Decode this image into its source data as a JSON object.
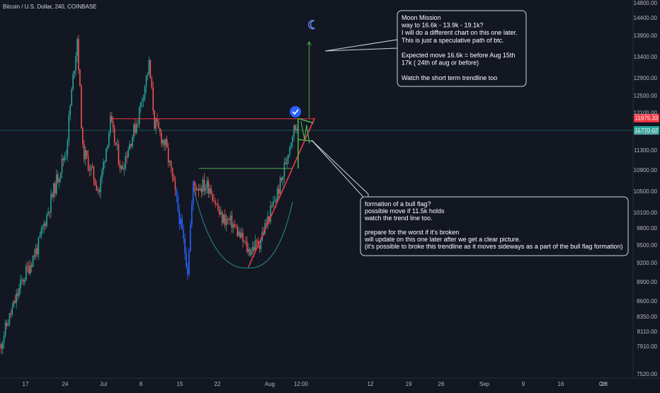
{
  "header": {
    "title": "Bitcoin / U.S. Dollar, 240, COINBASE"
  },
  "colors": {
    "background": "#131722",
    "up": "#26a69a",
    "down": "#ef5350",
    "resistance": "#f23645",
    "trendline": "#f23645",
    "flag": "#4caf50",
    "support_blue": "#2962ff",
    "annotation_border": "#d1d4dc"
  },
  "chart_data": {
    "type": "candlestick",
    "title": "Bitcoin / U.S. Dollar, 240, COINBASE",
    "xlabel": "",
    "ylabel": "",
    "ylim": [
      7400,
      14850
    ],
    "grid": false,
    "y_ticks": [
      7520,
      7910,
      8110,
      8350,
      8600,
      8900,
      9200,
      9500,
      9800,
      10100,
      10500,
      10900,
      11300,
      11700,
      12100,
      12500,
      12900,
      13400,
      13900,
      14400,
      14800
    ],
    "y_tick_labels": [
      "7520.00",
      "7910.00",
      "8110.00",
      "8350.00",
      "8600.00",
      "8900.00",
      "9200.00",
      "9500.00",
      "9800.00",
      "10100.00",
      "10500.00",
      "10900.00",
      "11300.00",
      "11700.00",
      "12100.00",
      "12500.00",
      "12900.00",
      "13400.00",
      "13900.00",
      "14400.00",
      "14800.00"
    ],
    "x_ticks": [
      "17",
      "24",
      "Jul",
      "8",
      "15",
      "22",
      "Aug",
      "12:00",
      "12",
      "19",
      "26",
      "Sep",
      "9",
      "16",
      "23",
      "Oct"
    ],
    "price_labels": [
      {
        "value": 11975.33,
        "text": "11975.33"
      },
      {
        "value": 11770.02,
        "text": "11770.02"
      }
    ],
    "price_path": [
      {
        "x": "2019-06-13",
        "y": 7900
      },
      {
        "x": "2019-06-17",
        "y": 8900
      },
      {
        "x": "2019-06-20",
        "y": 9500
      },
      {
        "x": "2019-06-23",
        "y": 10600
      },
      {
        "x": "2019-06-25",
        "y": 11300
      },
      {
        "x": "2019-06-27",
        "y": 13850
      },
      {
        "x": "2019-06-28",
        "y": 11300
      },
      {
        "x": "2019-07-01",
        "y": 10500
      },
      {
        "x": "2019-07-03",
        "y": 11900
      },
      {
        "x": "2019-07-05",
        "y": 10900
      },
      {
        "x": "2019-07-08",
        "y": 12000
      },
      {
        "x": "2019-07-10",
        "y": 13200
      },
      {
        "x": "2019-07-11",
        "y": 11900
      },
      {
        "x": "2019-07-13",
        "y": 11400
      },
      {
        "x": "2019-07-15",
        "y": 10300
      },
      {
        "x": "2019-07-17",
        "y": 9100
      },
      {
        "x": "2019-07-18",
        "y": 10600
      },
      {
        "x": "2019-07-21",
        "y": 10600
      },
      {
        "x": "2019-07-23",
        "y": 10000
      },
      {
        "x": "2019-07-25",
        "y": 9900
      },
      {
        "x": "2019-07-28",
        "y": 9400
      },
      {
        "x": "2019-07-30",
        "y": 9550
      },
      {
        "x": "2019-08-01",
        "y": 10100
      },
      {
        "x": "2019-08-03",
        "y": 10700
      },
      {
        "x": "2019-08-05",
        "y": 11700
      },
      {
        "x": "2019-08-06",
        "y": 11900
      }
    ],
    "drawings": [
      {
        "kind": "hline",
        "name": "resistance",
        "y": 11975,
        "from": "2019-07-03",
        "to": "2019-08-09"
      },
      {
        "kind": "hline",
        "name": "range-top",
        "y": 10930,
        "from": "2019-07-19",
        "to": "2019-08-05"
      },
      {
        "kind": "line",
        "name": "rising-trendline",
        "from": {
          "x": "2019-07-28",
          "y": 9130
        },
        "to": {
          "x": "2019-08-09",
          "y": 11990
        }
      },
      {
        "kind": "arc",
        "name": "cup-curve",
        "from": {
          "x": "2019-07-18",
          "y": 10600
        },
        "bottom": {
          "x": "2019-07-28",
          "y": 9120
        },
        "to": {
          "x": "2019-08-05",
          "y": 10300
        }
      },
      {
        "kind": "arrow",
        "name": "target-arrow",
        "from": {
          "x": "2019-08-08",
          "y": 11990
        },
        "to": {
          "x": "2019-08-08",
          "y": 13750
        }
      },
      {
        "kind": "flag",
        "name": "bull-flag",
        "top": [
          {
            "x": "2019-08-06",
            "y": 11980
          },
          {
            "x": "2019-08-08",
            "y": 11890
          }
        ],
        "bottom": [
          {
            "x": "2019-08-06",
            "y": 11540
          },
          {
            "x": "2019-08-08",
            "y": 11500
          }
        ]
      }
    ],
    "annotations": [
      {
        "id": "moon",
        "lines": [
          "Moon Mission",
          "way to 16.6k - 13.9k - 19.1k?",
          " I will do a different chart on this one later.",
          " This is just a speculative path of btc.",
          "",
          "Expected move 16.6k = before Aug 15th",
          "17k ( 24th of aug or before)",
          "",
          "Watch the short term trendline too"
        ]
      },
      {
        "id": "flag",
        "lines": [
          "formation of a bull flag?",
          "possible move if 11.5k holds",
          "watch the trend line too.",
          "",
          "prepare for the worst if it's broken",
          "will update on this one later after we get a clear picture.",
          "(it's possible to broke this trendline as it moves sideways as a part of the bull flag formation)"
        ]
      }
    ]
  }
}
